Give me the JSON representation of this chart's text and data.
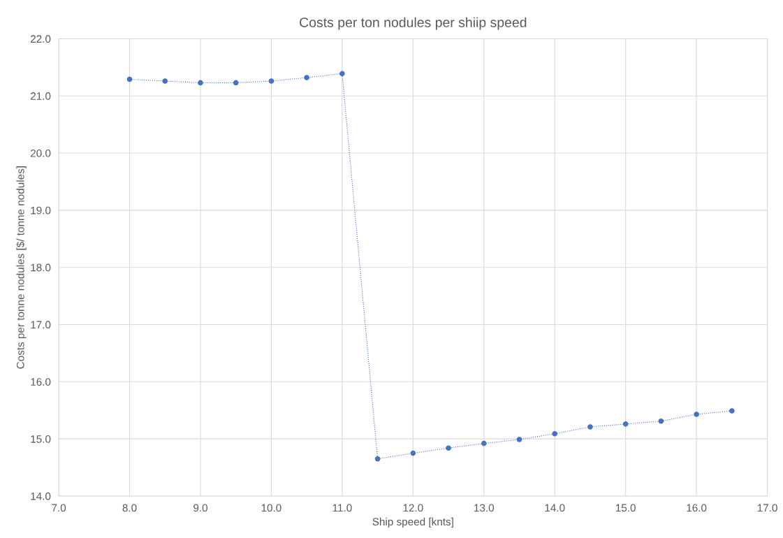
{
  "chart_data": {
    "type": "line",
    "title": "Costs per ton nodules per shiip speed",
    "xlabel": "Ship speed [knts]",
    "ylabel": "Costs per tonne nodules [$/ tonne nodules]",
    "x": [
      8.0,
      8.5,
      9.0,
      9.5,
      10.0,
      10.5,
      11.0,
      11.5,
      12.0,
      12.5,
      13.0,
      13.5,
      14.0,
      14.5,
      15.0,
      15.5,
      16.0,
      16.5
    ],
    "series": [
      {
        "color": "#4472c4",
        "values": [
          21.29,
          21.26,
          21.23,
          21.23,
          21.26,
          21.32,
          21.39,
          14.65,
          14.75,
          14.84,
          14.92,
          14.99,
          15.09,
          15.21,
          15.26,
          15.31,
          15.43,
          15.49
        ]
      }
    ],
    "xlim": [
      7.0,
      17.0
    ],
    "ylim": [
      14.0,
      22.0
    ],
    "xticks": [
      {
        "value": 7,
        "label": "7.0"
      },
      {
        "value": 8,
        "label": "8.0"
      },
      {
        "value": 9,
        "label": "9.0"
      },
      {
        "value": 10,
        "label": "10.0"
      },
      {
        "value": 11,
        "label": "11.0"
      },
      {
        "value": 12,
        "label": "12.0"
      },
      {
        "value": 13,
        "label": "13.0"
      },
      {
        "value": 14,
        "label": "14.0"
      },
      {
        "value": 15,
        "label": "15.0"
      },
      {
        "value": 16,
        "label": "16.0"
      },
      {
        "value": 17,
        "label": "17.0"
      }
    ],
    "yticks": [
      {
        "value": 14,
        "label": "14.0"
      },
      {
        "value": 15,
        "label": "15.0"
      },
      {
        "value": 16,
        "label": "16.0"
      },
      {
        "value": 17,
        "label": "17.0"
      },
      {
        "value": 18,
        "label": "18.0"
      },
      {
        "value": 19,
        "label": "19.0"
      },
      {
        "value": 20,
        "label": "20.0"
      },
      {
        "value": 21,
        "label": "21.0"
      },
      {
        "value": 22,
        "label": "22.0"
      }
    ],
    "grid": true,
    "marker": "circle",
    "line_style": "dotted"
  }
}
